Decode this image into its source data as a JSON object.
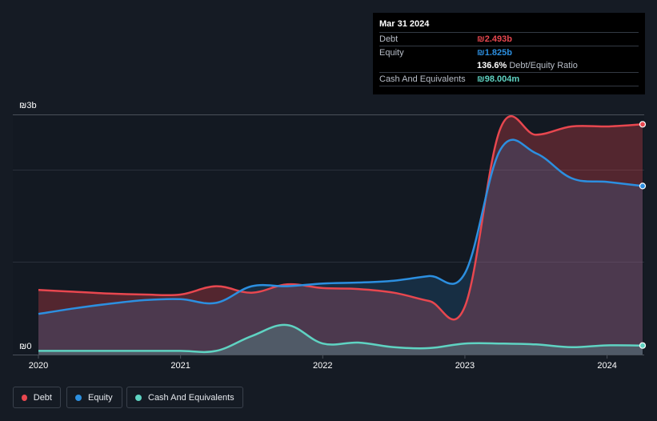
{
  "tooltip": {
    "date": "Mar 31 2024",
    "debt_label": "Debt",
    "debt_value": "₪2.493b",
    "equity_label": "Equity",
    "equity_value": "₪1.825b",
    "ratio_value": "136.6%",
    "ratio_label": "Debt/Equity Ratio",
    "cash_label": "Cash And Equivalents",
    "cash_value": "₪98.004m"
  },
  "legend": {
    "debt": "Debt",
    "equity": "Equity",
    "cash": "Cash And Equivalents"
  },
  "colors": {
    "debt": "#e8474f",
    "equity": "#2c8fe0",
    "cash": "#5fd3c2"
  },
  "chart_data": {
    "type": "area",
    "title": "Debt to Equity History and Analysis",
    "y_top_label": "₪3b",
    "y_bottom_label": "₪0",
    "ylim": [
      0,
      2.6
    ],
    "xlim": [
      2020.0,
      2024.25
    ],
    "x_ticks": [
      {
        "value": 2020,
        "label": "2020"
      },
      {
        "value": 2021,
        "label": "2021"
      },
      {
        "value": 2022,
        "label": "2022"
      },
      {
        "value": 2023,
        "label": "2023"
      },
      {
        "value": 2024,
        "label": "2024"
      }
    ],
    "series": [
      {
        "name": "Debt",
        "key": "debt",
        "x": [
          2020.0,
          2020.25,
          2020.5,
          2020.75,
          2021.0,
          2021.25,
          2021.5,
          2021.75,
          2022.0,
          2022.25,
          2022.5,
          2022.75,
          2023.0,
          2023.25,
          2023.5,
          2023.75,
          2024.0,
          2024.25
        ],
        "values": [
          0.7,
          0.68,
          0.66,
          0.65,
          0.65,
          0.74,
          0.67,
          0.76,
          0.72,
          0.71,
          0.67,
          0.58,
          0.52,
          2.45,
          2.38,
          2.47,
          2.47,
          2.493
        ]
      },
      {
        "name": "Equity",
        "key": "equity",
        "x": [
          2020.0,
          2020.25,
          2020.5,
          2020.75,
          2021.0,
          2021.25,
          2021.5,
          2021.75,
          2022.0,
          2022.25,
          2022.5,
          2022.75,
          2023.0,
          2023.25,
          2023.5,
          2023.75,
          2024.0,
          2024.25
        ],
        "values": [
          0.44,
          0.5,
          0.55,
          0.59,
          0.6,
          0.56,
          0.74,
          0.74,
          0.77,
          0.78,
          0.8,
          0.85,
          0.88,
          2.22,
          2.18,
          1.91,
          1.87,
          1.825
        ]
      },
      {
        "name": "Cash And Equivalents",
        "key": "cash",
        "x": [
          2020.0,
          2020.25,
          2020.5,
          2020.75,
          2021.0,
          2021.25,
          2021.5,
          2021.75,
          2022.0,
          2022.25,
          2022.5,
          2022.75,
          2023.0,
          2023.25,
          2023.5,
          2023.75,
          2024.0,
          2024.25
        ],
        "values": [
          0.04,
          0.04,
          0.04,
          0.04,
          0.04,
          0.04,
          0.2,
          0.32,
          0.12,
          0.13,
          0.08,
          0.07,
          0.12,
          0.12,
          0.11,
          0.08,
          0.1,
          0.098
        ]
      }
    ]
  }
}
